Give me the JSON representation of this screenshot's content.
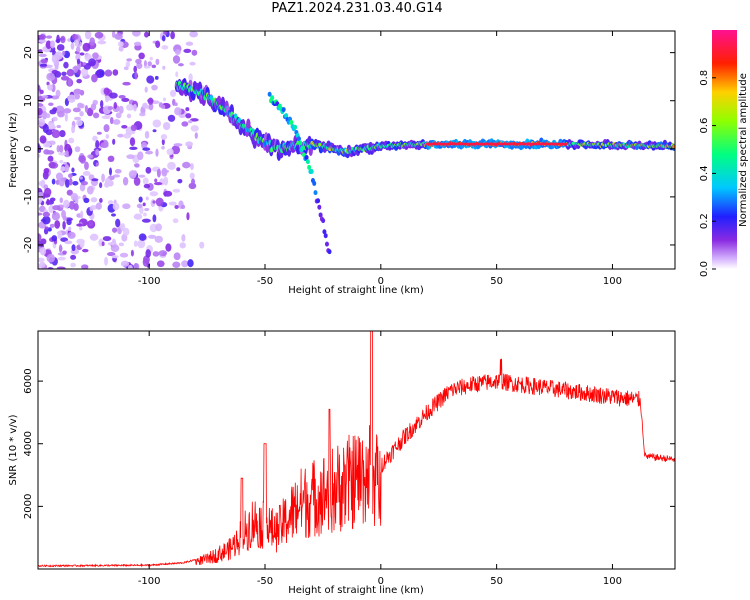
{
  "title": "PAZ1.2024.231.03.40.G14",
  "chart_data": [
    {
      "type": "heatmap",
      "xlabel": "Height of straight line (km)",
      "ylabel": "Frequency (Hz)",
      "xlim": [
        -148,
        127
      ],
      "ylim": [
        -25,
        24.5
      ],
      "xticks": [
        -100,
        -50,
        0,
        50,
        100
      ],
      "yticks": [
        20,
        10,
        0,
        -10,
        -20
      ],
      "colorbar": {
        "label": "Normalized spectral amplitude",
        "range": [
          0,
          1
        ],
        "ticks": [
          0.0,
          0.2,
          0.4,
          0.6,
          0.8
        ],
        "colormap": "rainbow (white-violet-blue-cyan-green-yellow-red-magenta)"
      },
      "features": {
        "noise_region_x": [
          -148,
          -85
        ],
        "main_trace": [
          {
            "x": -85,
            "y": 13
          },
          {
            "x": -75,
            "y": 11
          },
          {
            "x": -65,
            "y": 7
          },
          {
            "x": -55,
            "y": 3
          },
          {
            "x": -45,
            "y": 0
          },
          {
            "x": -30,
            "y": 1
          },
          {
            "x": -15,
            "y": -0.5
          },
          {
            "x": 0,
            "y": 0.5
          },
          {
            "x": 20,
            "y": 1
          },
          {
            "x": 50,
            "y": 1
          },
          {
            "x": 80,
            "y": 1
          },
          {
            "x": 127,
            "y": 0.5
          }
        ],
        "secondary_trace": [
          {
            "x": -48,
            "y": 11
          },
          {
            "x": -38,
            "y": 5
          },
          {
            "x": -30,
            "y": -5
          },
          {
            "x": -22,
            "y": -22
          }
        ],
        "steady_band_x": [
          20,
          80
        ]
      }
    },
    {
      "type": "line",
      "xlabel": "Height of straight line (km)",
      "ylabel": "SNR (10 * v/v)",
      "xlim": [
        -148,
        127
      ],
      "ylim": [
        0,
        7600
      ],
      "xticks": [
        -100,
        -50,
        0,
        50,
        100
      ],
      "yticks": [
        2000,
        4000,
        6000
      ],
      "series_color": "#ff0000",
      "envelope": [
        {
          "x": -148,
          "y": 100
        },
        {
          "x": -100,
          "y": 120
        },
        {
          "x": -85,
          "y": 200
        },
        {
          "x": -75,
          "y": 400
        },
        {
          "x": -65,
          "y": 800
        },
        {
          "x": -55,
          "y": 1900
        },
        {
          "x": -45,
          "y": 1500
        },
        {
          "x": -35,
          "y": 2600
        },
        {
          "x": -25,
          "y": 3000
        },
        {
          "x": -15,
          "y": 3400
        },
        {
          "x": -10,
          "y": 3600
        },
        {
          "x": -5,
          "y": 3900
        },
        {
          "x": 0,
          "y": 3300
        },
        {
          "x": 10,
          "y": 4200
        },
        {
          "x": 20,
          "y": 5000
        },
        {
          "x": 30,
          "y": 5700
        },
        {
          "x": 40,
          "y": 5900
        },
        {
          "x": 50,
          "y": 6000
        },
        {
          "x": 60,
          "y": 5900
        },
        {
          "x": 70,
          "y": 5800
        },
        {
          "x": 80,
          "y": 5700
        },
        {
          "x": 90,
          "y": 5600
        },
        {
          "x": 100,
          "y": 5500
        },
        {
          "x": 112,
          "y": 5400
        },
        {
          "x": 114,
          "y": 3600
        },
        {
          "x": 127,
          "y": 3500
        }
      ],
      "spikes": [
        {
          "x": -4,
          "y": 7600
        },
        {
          "x": -50,
          "y": 4000
        },
        {
          "x": -60,
          "y": 2900
        },
        {
          "x": -22,
          "y": 5100
        },
        {
          "x": 52,
          "y": 6700
        }
      ]
    }
  ]
}
